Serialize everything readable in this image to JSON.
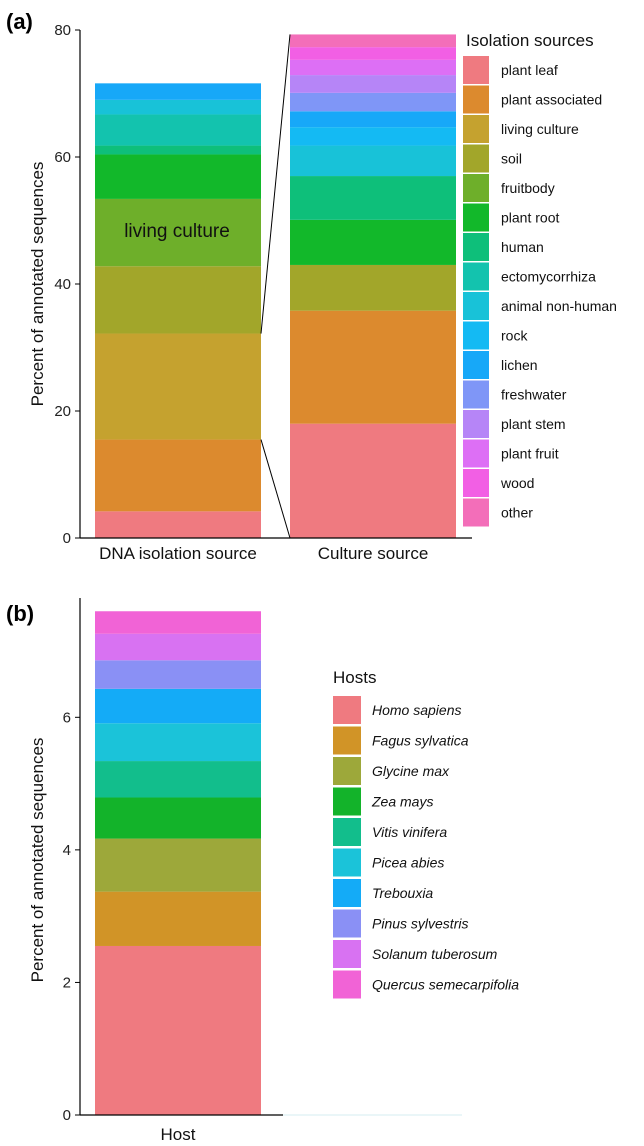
{
  "chart_data": [
    {
      "panel_label": "(a)",
      "type": "bar",
      "stacked": true,
      "ylabel": "Percent of annotated sequences",
      "ylim": [
        0,
        80
      ],
      "yticks": [
        "0",
        "20",
        "40",
        "60",
        "80"
      ],
      "categories": [
        "DNA isolation source",
        "Culture source"
      ],
      "annotation": "living culture",
      "legend_title": "Isolation sources",
      "legend_position": "right",
      "series": [
        {
          "name": "plant leaf",
          "color": "#EF7A80",
          "values": [
            4.2,
            18.0
          ]
        },
        {
          "name": "plant associated",
          "color": "#DC8A2E",
          "values": [
            11.3,
            17.8
          ]
        },
        {
          "name": "living culture",
          "color": "#C5A22F",
          "values": [
            16.7,
            0
          ]
        },
        {
          "name": "soil",
          "color": "#A2A62A",
          "values": [
            10.6,
            7.2
          ]
        },
        {
          "name": "fruitbody",
          "color": "#6EAF2A",
          "values": [
            10.6,
            0
          ]
        },
        {
          "name": "plant root",
          "color": "#12B82A",
          "values": [
            7.0,
            7.1
          ]
        },
        {
          "name": "human",
          "color": "#0EBF7A",
          "values": [
            1.4,
            6.9
          ]
        },
        {
          "name": "ectomycorrhiza",
          "color": "#13C3AE",
          "values": [
            4.9,
            0
          ]
        },
        {
          "name": "animal non-human",
          "color": "#18C2D8",
          "values": [
            2.3,
            4.8
          ]
        },
        {
          "name": "rock",
          "color": "#14BAF3",
          "values": [
            0,
            2.9
          ]
        },
        {
          "name": "lichen",
          "color": "#17A8F8",
          "values": [
            2.6,
            2.5
          ]
        },
        {
          "name": "freshwater",
          "color": "#7F96F7",
          "values": [
            0,
            2.9
          ]
        },
        {
          "name": "plant stem",
          "color": "#B685F7",
          "values": [
            0,
            2.8
          ]
        },
        {
          "name": "plant fruit",
          "color": "#DD6FF5",
          "values": [
            0,
            2.4
          ]
        },
        {
          "name": "wood",
          "color": "#F25FE4",
          "values": [
            0,
            2.0
          ]
        },
        {
          "name": "other",
          "color": "#F36EB9",
          "values": [
            0,
            2.0
          ]
        }
      ]
    },
    {
      "panel_label": "(b)",
      "type": "bar",
      "stacked": true,
      "ylabel": "Percent of annotated sequences",
      "ylim": [
        0,
        7.8
      ],
      "yticks": [
        "0",
        "2",
        "4",
        "6"
      ],
      "categories": [
        "Host"
      ],
      "legend_title": "Hosts",
      "legend_position": "right",
      "series": [
        {
          "name": "Homo sapiens",
          "color": "#EF7A80",
          "values": [
            2.55
          ]
        },
        {
          "name": "Fagus sylvatica",
          "color": "#D19427",
          "values": [
            0.82
          ]
        },
        {
          "name": "Glycine max",
          "color": "#9DA83A",
          "values": [
            0.8
          ]
        },
        {
          "name": "Zea mays",
          "color": "#13B32A",
          "values": [
            0.62
          ]
        },
        {
          "name": "Vitis vinifera",
          "color": "#12BE8C",
          "values": [
            0.55
          ]
        },
        {
          "name": "Picea abies",
          "color": "#1BC3D9",
          "values": [
            0.57
          ]
        },
        {
          "name": "Trebouxia",
          "color": "#14ABF7",
          "values": [
            0.52
          ]
        },
        {
          "name": "Pinus sylvestris",
          "color": "#8A90F5",
          "values": [
            0.43
          ]
        },
        {
          "name": "Solanum tuberosum",
          "color": "#D872F2",
          "values": [
            0.4
          ]
        },
        {
          "name": "Quercus semecarpifolia",
          "color": "#F163D6",
          "values": [
            0.34
          ]
        }
      ]
    }
  ]
}
